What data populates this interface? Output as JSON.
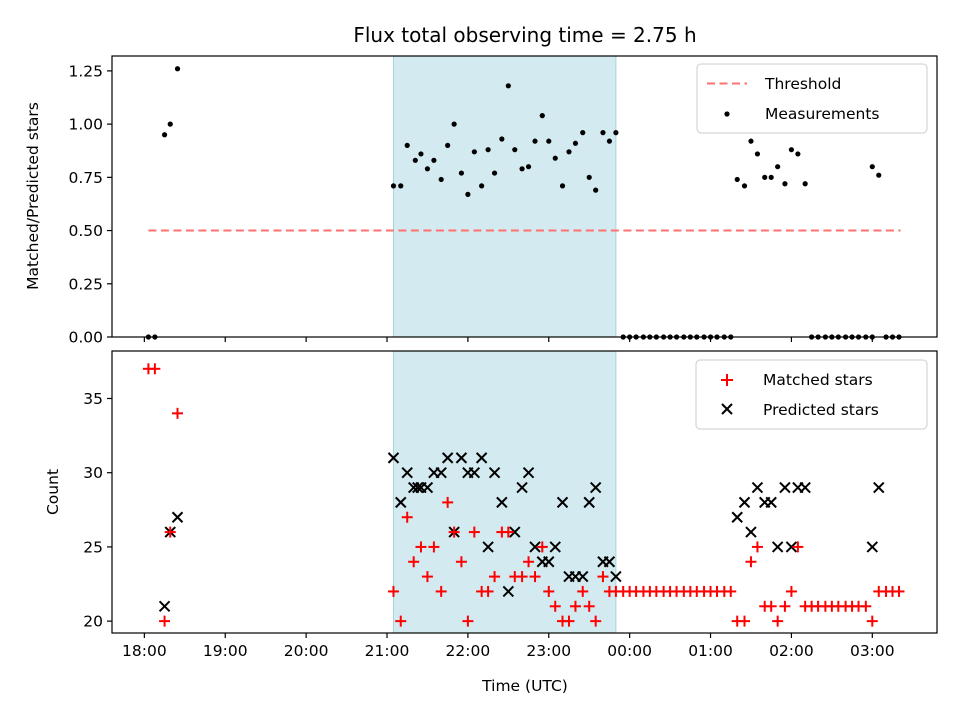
{
  "chart_data": [
    {
      "type": "scatter",
      "title": "Flux total observing time = 2.75 h",
      "xlabel": "",
      "ylabel": "Matched/Predicted stars",
      "xlim": [
        17.6,
        27.8
      ],
      "ylim": [
        0.0,
        1.32
      ],
      "yticks": [
        0.0,
        0.25,
        0.5,
        0.75,
        1.0,
        1.25
      ],
      "ytick_labels": [
        "0.00",
        "0.25",
        "0.50",
        "0.75",
        "1.00",
        "1.25"
      ],
      "shaded_span": {
        "x": [
          21.08,
          23.83
        ],
        "color": "#d3eaf0"
      },
      "threshold": {
        "name": "Threshold",
        "y": 0.5,
        "x": [
          18.05,
          27.35
        ],
        "color": "#ff7070"
      },
      "legend": [
        "Threshold",
        "Measurements"
      ],
      "legend_position": "top-right",
      "series": [
        {
          "name": "Measurements",
          "color": "#000000",
          "x": [
            18.05,
            18.13,
            18.25,
            18.32,
            18.41,
            21.08,
            21.17,
            21.25,
            21.35,
            21.42,
            21.5,
            21.58,
            21.67,
            21.75,
            21.83,
            21.92,
            22.0,
            22.08,
            22.17,
            22.25,
            22.33,
            22.42,
            22.5,
            22.58,
            22.67,
            22.75,
            22.83,
            22.92,
            23.0,
            23.08,
            23.17,
            23.25,
            23.33,
            23.42,
            23.5,
            23.58,
            23.67,
            23.75,
            23.83,
            23.92,
            24.0,
            24.08,
            24.17,
            24.25,
            24.33,
            24.42,
            24.5,
            24.58,
            24.67,
            24.75,
            24.83,
            24.92,
            25.0,
            25.08,
            25.17,
            25.25,
            25.33,
            25.42,
            25.5,
            25.58,
            25.67,
            25.75,
            25.83,
            25.92,
            26.0,
            26.08,
            26.17,
            26.25,
            26.33,
            26.42,
            26.5,
            26.58,
            26.67,
            26.75,
            26.83,
            26.92,
            27.0,
            27.0,
            27.08,
            27.17,
            27.25,
            27.33
          ],
          "y": [
            0,
            0,
            0.95,
            1.0,
            1.26,
            0.71,
            0.71,
            0.9,
            0.83,
            0.86,
            0.79,
            0.83,
            0.74,
            0.9,
            1.0,
            0.77,
            0.67,
            0.87,
            0.71,
            0.88,
            0.77,
            0.93,
            1.18,
            0.88,
            0.79,
            0.8,
            0.92,
            1.04,
            0.92,
            0.84,
            0.71,
            0.87,
            0.91,
            0.96,
            0.75,
            0.69,
            0.96,
            0.92,
            0.96,
            0,
            0,
            0,
            0,
            0,
            0,
            0,
            0,
            0,
            0,
            0,
            0,
            0,
            0,
            0,
            0,
            0,
            0.74,
            0.71,
            0.92,
            0.86,
            0.75,
            0.75,
            0.8,
            0.72,
            0.88,
            0.86,
            0.72,
            0,
            0,
            0,
            0,
            0,
            0,
            0,
            0,
            0,
            0,
            0.8,
            0.76,
            0,
            0,
            0
          ]
        }
      ]
    },
    {
      "type": "scatter",
      "title": "",
      "xlabel": "Time (UTC)",
      "ylabel": "Count",
      "xlim": [
        17.6,
        27.8
      ],
      "ylim": [
        19.2,
        38.2
      ],
      "yticks": [
        20,
        25,
        30,
        35
      ],
      "ytick_labels": [
        "20",
        "25",
        "30",
        "35"
      ],
      "xticks": [
        18,
        19,
        20,
        21,
        22,
        23,
        24,
        25,
        26,
        27
      ],
      "xtick_labels": [
        "18:00",
        "19:00",
        "20:00",
        "21:00",
        "22:00",
        "23:00",
        "00:00",
        "01:00",
        "02:00",
        "03:00"
      ],
      "shaded_span": {
        "x": [
          21.08,
          23.83
        ],
        "color": "#d3eaf0"
      },
      "legend": [
        "Matched stars",
        "Predicted stars"
      ],
      "legend_position": "top-right",
      "series": [
        {
          "name": "Matched stars",
          "marker": "plus",
          "color": "#ff0000",
          "x": [
            18.05,
            18.13,
            18.25,
            18.32,
            18.41,
            21.08,
            21.17,
            21.25,
            21.33,
            21.42,
            21.5,
            21.58,
            21.67,
            21.75,
            21.83,
            21.92,
            22.0,
            22.08,
            22.17,
            22.25,
            22.33,
            22.42,
            22.5,
            22.58,
            22.67,
            22.75,
            22.83,
            22.92,
            23.0,
            23.08,
            23.17,
            23.25,
            23.33,
            23.42,
            23.5,
            23.58,
            23.67,
            23.75,
            23.83,
            23.92,
            24.0,
            24.08,
            24.17,
            24.25,
            24.33,
            24.42,
            24.5,
            24.58,
            24.67,
            24.75,
            24.83,
            24.92,
            25.0,
            25.08,
            25.17,
            25.25,
            25.33,
            25.42,
            25.5,
            25.58,
            25.67,
            25.75,
            25.83,
            25.92,
            26.0,
            26.08,
            26.17,
            26.25,
            26.33,
            26.42,
            26.5,
            26.58,
            26.67,
            26.75,
            26.83,
            26.92,
            27.0,
            27.08,
            27.17,
            27.25,
            27.33
          ],
          "y": [
            37,
            37,
            20,
            26,
            34,
            22,
            20,
            27,
            24,
            25,
            23,
            25,
            22,
            28,
            26,
            24,
            20,
            26,
            22,
            22,
            23,
            26,
            26,
            23,
            23,
            24,
            23,
            25,
            22,
            21,
            20,
            20,
            21,
            22,
            21,
            20,
            23,
            22,
            22,
            22,
            22,
            22,
            22,
            22,
            22,
            22,
            22,
            22,
            22,
            22,
            22,
            22,
            22,
            22,
            22,
            22,
            20,
            20,
            24,
            25,
            21,
            21,
            20,
            21,
            22,
            25,
            21,
            21,
            21,
            21,
            21,
            21,
            21,
            21,
            21,
            21,
            20,
            22,
            22,
            22,
            22
          ]
        },
        {
          "name": "Predicted stars",
          "marker": "x",
          "color": "#000000",
          "x": [
            18.25,
            18.32,
            18.41,
            21.08,
            21.17,
            21.25,
            21.33,
            21.38,
            21.42,
            21.5,
            21.58,
            21.67,
            21.75,
            21.83,
            21.92,
            22.0,
            22.08,
            22.17,
            22.25,
            22.33,
            22.42,
            22.5,
            22.58,
            22.67,
            22.75,
            22.83,
            22.92,
            23.0,
            23.08,
            23.17,
            23.25,
            23.33,
            23.42,
            23.5,
            23.58,
            23.67,
            23.75,
            23.83,
            25.33,
            25.42,
            25.5,
            25.58,
            25.67,
            25.75,
            25.83,
            25.92,
            26.0,
            26.08,
            26.17,
            27.0,
            27.08
          ],
          "y": [
            21,
            26,
            27,
            31,
            28,
            30,
            29,
            29,
            29,
            29,
            30,
            30,
            31,
            26,
            31,
            30,
            30,
            31,
            25,
            30,
            28,
            22,
            26,
            29,
            30,
            25,
            24,
            24,
            25,
            28,
            23,
            23,
            23,
            28,
            29,
            24,
            24,
            23,
            27,
            28,
            26,
            29,
            28,
            28,
            25,
            29,
            25,
            29,
            29,
            25,
            29
          ]
        }
      ]
    }
  ]
}
